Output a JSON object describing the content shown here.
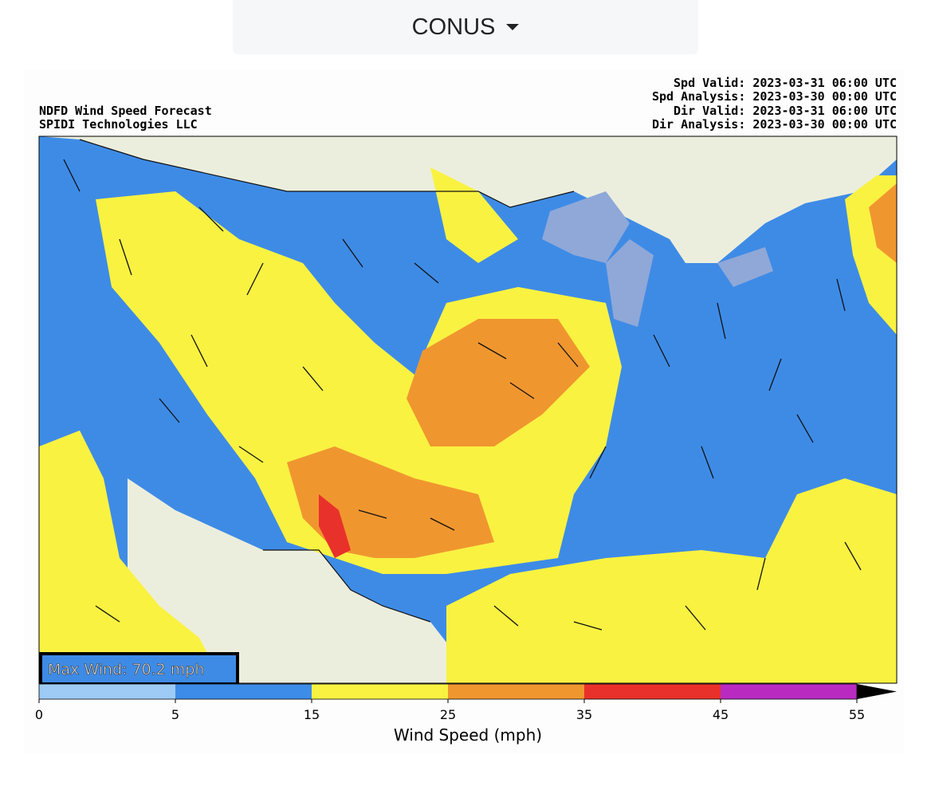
{
  "dropdown": {
    "label": "CONUS"
  },
  "map": {
    "title_lines": [
      "NDFD Wind Speed Forecast",
      "SPIDI Technologies LLC"
    ],
    "valid_lines": [
      "Spd Valid: 2023-03-31 06:00 UTC",
      "Spd Analysis: 2023-03-30 00:00 UTC",
      "Dir Valid: 2023-03-31 06:00 UTC",
      "Dir Analysis: 2023-03-30 00:00 UTC"
    ],
    "max_wind": "Max Wind: 70.2 mph"
  },
  "colorbar": {
    "label": "Wind Speed (mph)",
    "ticks": [
      0,
      5,
      15,
      25,
      35,
      45,
      55
    ],
    "colors": [
      "#9ecbf5",
      "#3d8ce8",
      "#f9f241",
      "#f0962f",
      "#e8312a",
      "#b92ac1"
    ]
  }
}
